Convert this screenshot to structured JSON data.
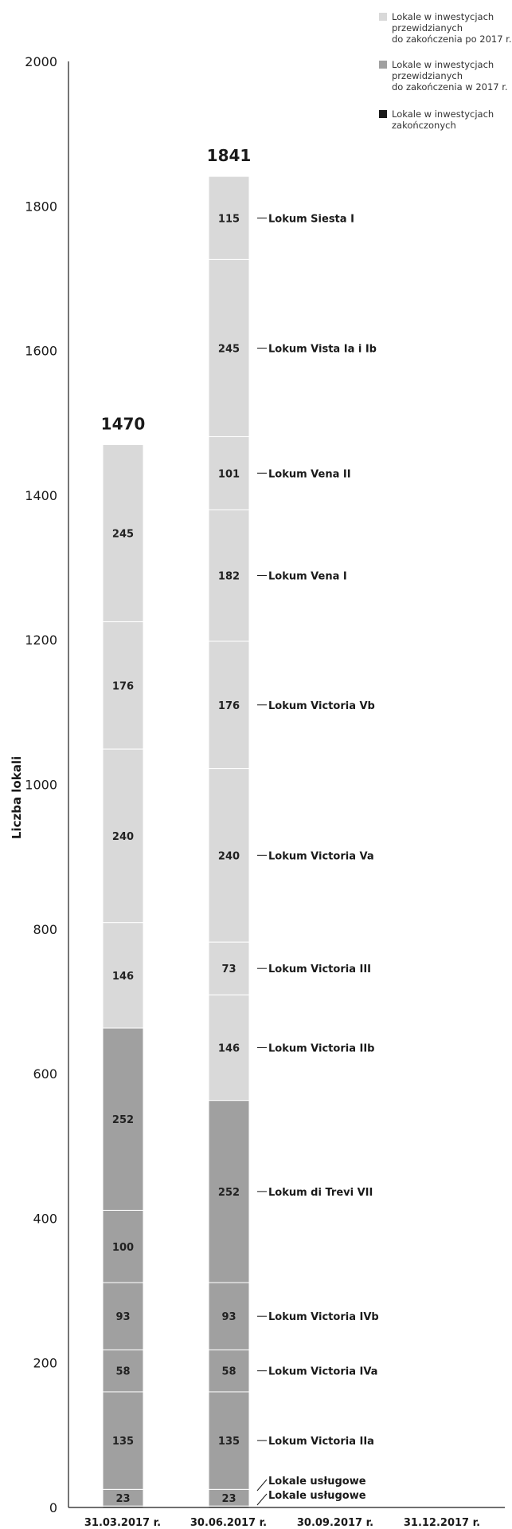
{
  "chart_data": {
    "type": "bar",
    "stacked": true,
    "ylabel": "Liczba lokali",
    "ylim": [
      0,
      2000
    ],
    "yticks": [
      0,
      200,
      400,
      600,
      800,
      1000,
      1200,
      1400,
      1600,
      1800,
      2000
    ],
    "categories": [
      "31.03.2017 r.",
      "30.06.2017 r.",
      "30.09.2017 r.",
      "31.12.2017 r."
    ],
    "legend": {
      "position": "top-right",
      "items": [
        {
          "key": "po2017",
          "lines": [
            "Lokale w inwestycjach",
            "przewidzianych",
            "do zakończenia po 2017 r."
          ],
          "color": "#d9d9d9"
        },
        {
          "key": "w2017",
          "lines": [
            "Lokale w inwestycjach",
            "przewidzianych",
            "do zakończenia w 2017 r."
          ],
          "color": "#a0a0a0"
        },
        {
          "key": "zak",
          "lines": [
            "Lokale w inwestycjach",
            "zakończonych"
          ],
          "color": "#1a1a1a"
        }
      ]
    },
    "bars": [
      {
        "category": "31.03.2017 r.",
        "total": "1470",
        "segments": [
          {
            "value": 2,
            "group": "w2017",
            "label": "2"
          },
          {
            "value": 23,
            "group": "w2017",
            "label": "23"
          },
          {
            "value": 135,
            "group": "w2017",
            "label": "135"
          },
          {
            "value": 58,
            "group": "w2017",
            "label": "58"
          },
          {
            "value": 93,
            "group": "w2017",
            "label": "93"
          },
          {
            "value": 100,
            "group": "w2017",
            "label": "100"
          },
          {
            "value": 252,
            "group": "w2017",
            "label": "252"
          },
          {
            "value": 146,
            "group": "po2017",
            "label": "146"
          },
          {
            "value": 240,
            "group": "po2017",
            "label": "240"
          },
          {
            "value": 176,
            "group": "po2017",
            "label": "176"
          },
          {
            "value": 245,
            "group": "po2017",
            "label": "245"
          }
        ]
      },
      {
        "category": "30.06.2017 r.",
        "total": "1841",
        "segments": [
          {
            "value": 2,
            "group": "w2017",
            "label": "2",
            "project": "Lokale usługowe"
          },
          {
            "value": 23,
            "group": "w2017",
            "label": "23",
            "project": "Lokale usługowe"
          },
          {
            "value": 135,
            "group": "w2017",
            "label": "135",
            "project": "Lokum Victoria IIa"
          },
          {
            "value": 58,
            "group": "w2017",
            "label": "58",
            "project": "Lokum Victoria IVa"
          },
          {
            "value": 93,
            "group": "w2017",
            "label": "93",
            "project": "Lokum Victoria IVb"
          },
          {
            "value": 252,
            "group": "w2017",
            "label": "252",
            "project": "Lokum di Trevi VII"
          },
          {
            "value": 146,
            "group": "po2017",
            "label": "146",
            "project": "Lokum Victoria IIb"
          },
          {
            "value": 73,
            "group": "po2017",
            "label": "73",
            "project": "Lokum Victoria III"
          },
          {
            "value": 240,
            "group": "po2017",
            "label": "240",
            "project": "Lokum Victoria Va"
          },
          {
            "value": 176,
            "group": "po2017",
            "label": "176",
            "project": "Lokum Victoria Vb"
          },
          {
            "value": 182,
            "group": "po2017",
            "label": "182",
            "project": "Lokum Vena I"
          },
          {
            "value": 101,
            "group": "po2017",
            "label": "101",
            "project": "Lokum Vena II"
          },
          {
            "value": 245,
            "group": "po2017",
            "label": "245",
            "project": "Lokum Vista Ia i Ib"
          },
          {
            "value": 115,
            "group": "po2017",
            "label": "115",
            "project": "Lokum Siesta I"
          }
        ]
      }
    ]
  }
}
